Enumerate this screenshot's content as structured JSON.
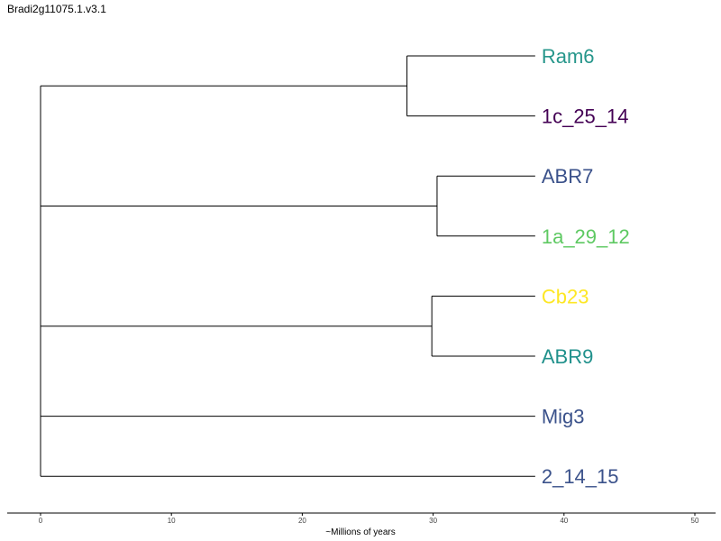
{
  "title": "Bradi2g11075.1.v3.1",
  "axis": {
    "label": "~Millions of years",
    "ticks": [
      0,
      10,
      20,
      30,
      40,
      50
    ],
    "range": [
      0,
      50
    ]
  },
  "leaves": [
    {
      "name": "Ram6",
      "color": "#26968b"
    },
    {
      "name": "1c_25_14",
      "color": "#440154"
    },
    {
      "name": "ABR7",
      "color": "#3b528b"
    },
    {
      "name": "1a_29_12",
      "color": "#5ec962"
    },
    {
      "name": "Cb23",
      "color": "#fde725"
    },
    {
      "name": "ABR9",
      "color": "#21918c"
    },
    {
      "name": "Mig3",
      "color": "#3b528b"
    },
    {
      "name": "2_14_15",
      "color": "#3b528b"
    }
  ],
  "tree": {
    "depth": 0,
    "children": [
      {
        "depth": 28,
        "children": [
          {
            "leaf": 0
          },
          {
            "leaf": 1
          }
        ]
      },
      {
        "depth": 30.3,
        "children": [
          {
            "leaf": 2
          },
          {
            "leaf": 3
          }
        ]
      },
      {
        "depth": 29.9,
        "children": [
          {
            "leaf": 4
          },
          {
            "leaf": 5
          }
        ]
      },
      {
        "leaf": 6
      },
      {
        "leaf": 7
      }
    ]
  },
  "leaf_depth": 37.8
}
